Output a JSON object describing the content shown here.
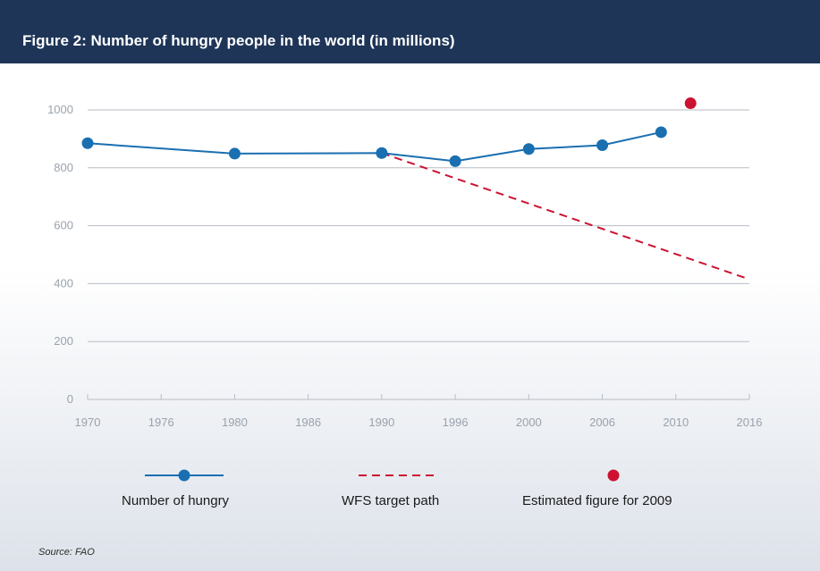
{
  "figure_title": "Figure 2: Number of hungry people in the world (in millions)",
  "source": "Source: FAO",
  "colors": {
    "header": "#1e3557",
    "hungry": "#1a6fb0",
    "target": "#cc1230",
    "estimate": "#cc1230",
    "grid": "#b8bec6"
  },
  "chart_data": {
    "type": "line",
    "title": "Figure 2: Number of hungry people in the world (in millions)",
    "xlabel": "",
    "ylabel": "",
    "x_ticks": [
      "1970",
      "1976",
      "1980",
      "1986",
      "1990",
      "1996",
      "2000",
      "2006",
      "2010",
      "2016"
    ],
    "y_ticks": [
      "0",
      "200",
      "400",
      "600",
      "800",
      "1000"
    ],
    "ylim": [
      0,
      1000
    ],
    "grid": "horizontal",
    "legend_position": "bottom",
    "series": [
      {
        "name": "Number of hungry",
        "style": "line-markers",
        "tick_positions": [
          0,
          2,
          4,
          5,
          6,
          7,
          7.8
        ],
        "values": [
          885,
          849,
          851,
          823,
          865,
          878,
          923
        ]
      },
      {
        "name": "WFS target path",
        "style": "dashed",
        "tick_positions": [
          4,
          9
        ],
        "values": [
          851,
          415
        ]
      },
      {
        "name": "Estimated figure for 2009",
        "style": "point",
        "tick_positions": [
          8.2
        ],
        "values": [
          1023
        ]
      }
    ]
  }
}
